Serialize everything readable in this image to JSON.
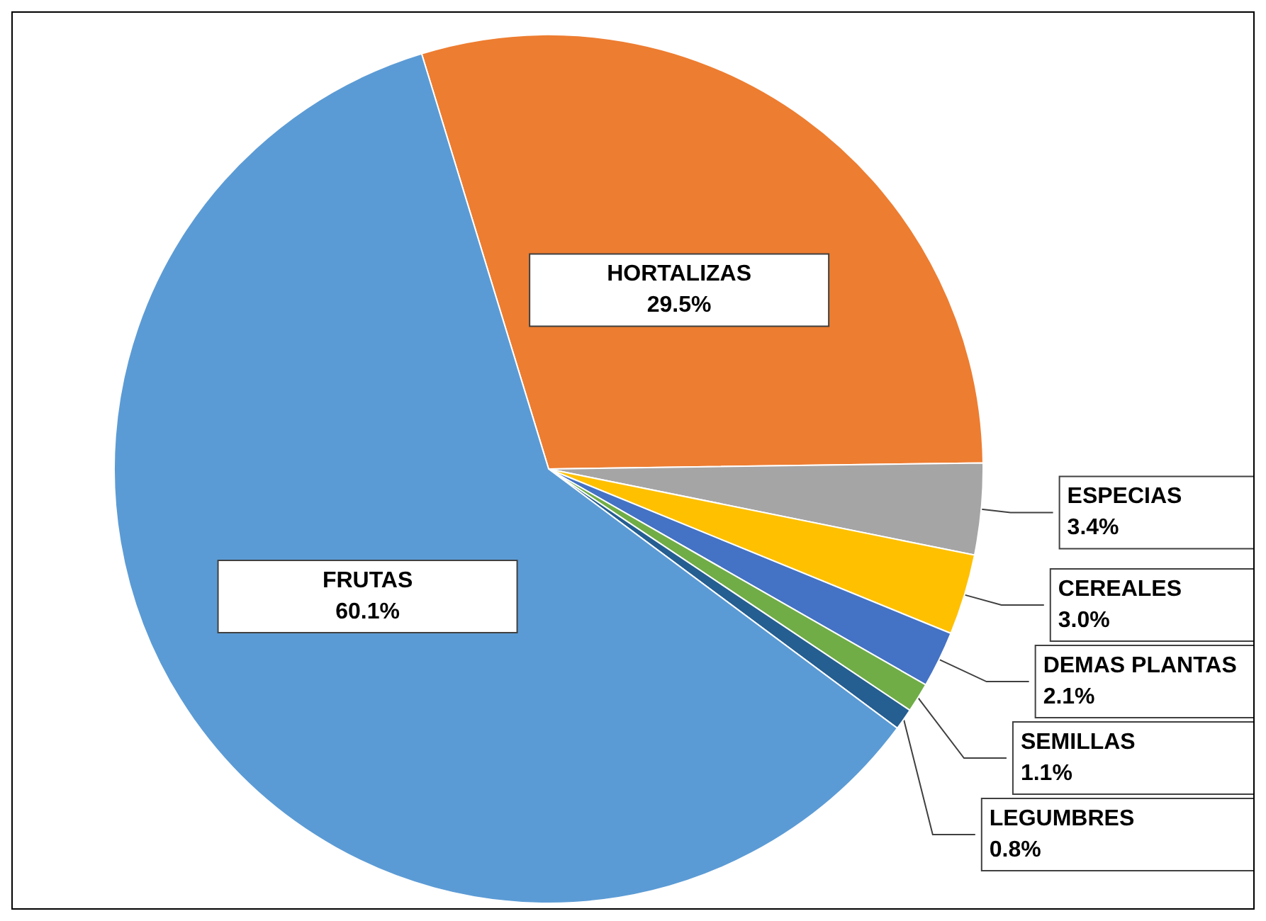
{
  "chart_data": {
    "type": "pie",
    "categories": [
      "HORTALIZAS",
      "ESPECIAS",
      "CEREALES",
      "DEMAS PLANTAS",
      "SEMILLAS",
      "LEGUMBRES",
      "FRUTAS"
    ],
    "values": [
      29.5,
      3.4,
      3.0,
      2.1,
      1.1,
      0.8,
      60.1
    ],
    "value_labels": [
      "29.5%",
      "3.4%",
      "3.0%",
      "2.1%",
      "1.1%",
      "0.8%",
      "60.1%"
    ],
    "colors": [
      "#ed7d31",
      "#a5a5a5",
      "#ffc000",
      "#4472c4",
      "#70ad47",
      "#255e91",
      "#5b9bd5"
    ],
    "legend": false
  }
}
